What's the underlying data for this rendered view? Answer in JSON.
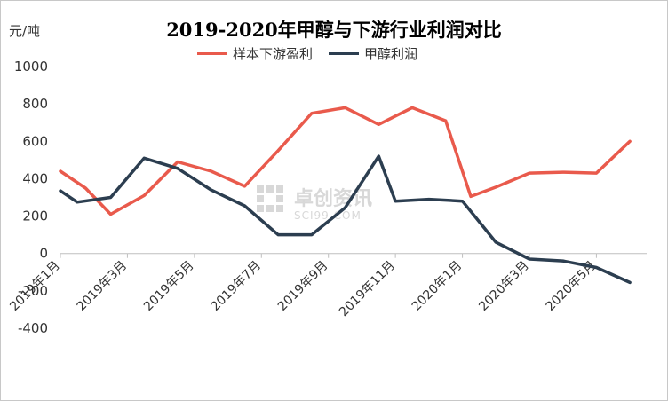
{
  "chart_data": {
    "type": "line",
    "title": "2019-2020年甲醇与下游行业利润对比",
    "ylabel": "元/吨",
    "xlabel": "",
    "ylim": [
      -400,
      1000
    ],
    "yticks": [
      1000,
      800,
      600,
      400,
      200,
      0,
      -200,
      -400
    ],
    "grid": false,
    "legend": "top",
    "x_labels": [
      "2019年1月",
      "2019年3月",
      "2019年5月",
      "2019年7月",
      "2019年9月",
      "2019年11月",
      "2020年1月",
      "2020年3月",
      "2020年5月"
    ],
    "x_label_index": [
      0,
      4,
      8,
      12,
      16,
      20,
      24,
      28,
      32
    ],
    "n_points": 36,
    "series": [
      {
        "name": "样本下游盈利",
        "color": "#e95a4c",
        "x": [
          0,
          1.5,
          3,
          5,
          7,
          9,
          11,
          13,
          15,
          17,
          19,
          21,
          23,
          24.5,
          26,
          28,
          30,
          32,
          34
        ],
        "values": [
          440,
          350,
          210,
          310,
          490,
          440,
          360,
          550,
          750,
          780,
          690,
          780,
          710,
          305,
          355,
          430,
          435,
          430,
          600
        ]
      },
      {
        "name": "甲醇利润",
        "color": "#2c3e50",
        "x": [
          0,
          1,
          3,
          5,
          7,
          9,
          11,
          13,
          15,
          17,
          19,
          20,
          22,
          24,
          26,
          28,
          30,
          32,
          34
        ],
        "values": [
          335,
          275,
          300,
          510,
          455,
          340,
          255,
          100,
          100,
          245,
          520,
          280,
          290,
          280,
          60,
          -30,
          -40,
          -75,
          -155
        ]
      }
    ]
  },
  "watermark": {
    "brand": "卓创资讯",
    "site": "SCI99.COM"
  }
}
